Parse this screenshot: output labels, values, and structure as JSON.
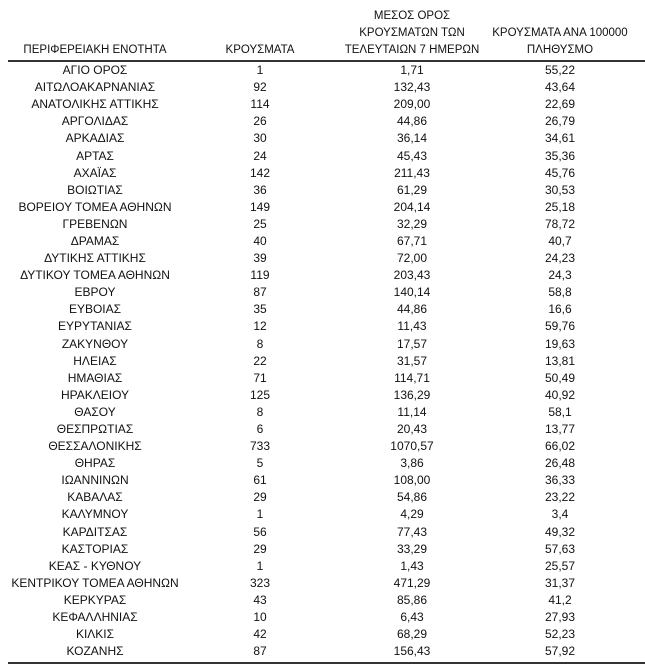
{
  "headers": {
    "region": "ΠΕΡΙΦΕΡΕΙΑΚΗ ΕΝΟΤΗΤΑ",
    "cases": "ΚΡΟΥΣΜΑΤΑ",
    "avg_line1": "ΜΕΣΟΣ ΟΡΟΣ",
    "avg_line2": "ΚΡΟΥΣΜΑΤΩΝ ΤΩΝ",
    "avg_line3": "ΤΕΛΕΥΤΑΙΩΝ 7 ΗΜΕΡΩΝ",
    "per100k_line1": "ΚΡΟΥΣΜΑΤΑ ΑΝΑ 100000",
    "per100k_line2": "ΠΛΗΘΥΣΜΟ"
  },
  "rows": [
    [
      "ΑΓΙΟ ΟΡΟΣ",
      "1",
      "1,71",
      "55,22"
    ],
    [
      "ΑΙΤΩΛΟΑΚΑΡΝΑΝΙΑΣ",
      "92",
      "132,43",
      "43,64"
    ],
    [
      "ΑΝΑΤΟΛΙΚΗΣ ΑΤΤΙΚΗΣ",
      "114",
      "209,00",
      "22,69"
    ],
    [
      "ΑΡΓΟΛΙΔΑΣ",
      "26",
      "44,86",
      "26,79"
    ],
    [
      "ΑΡΚΑΔΙΑΣ",
      "30",
      "36,14",
      "34,61"
    ],
    [
      "ΑΡΤΑΣ",
      "24",
      "45,43",
      "35,36"
    ],
    [
      "ΑΧΑΪΑΣ",
      "142",
      "211,43",
      "45,76"
    ],
    [
      "ΒΟΙΩΤΙΑΣ",
      "36",
      "61,29",
      "30,53"
    ],
    [
      "ΒΟΡΕΙΟΥ ΤΟΜΕΑ ΑΘΗΝΩΝ",
      "149",
      "204,14",
      "25,18"
    ],
    [
      "ΓΡΕΒΕΝΩΝ",
      "25",
      "32,29",
      "78,72"
    ],
    [
      "ΔΡΑΜΑΣ",
      "40",
      "67,71",
      "40,7"
    ],
    [
      "ΔΥΤΙΚΗΣ ΑΤΤΙΚΗΣ",
      "39",
      "72,00",
      "24,23"
    ],
    [
      "ΔΥΤΙΚΟΥ ΤΟΜΕΑ ΑΘΗΝΩΝ",
      "119",
      "203,43",
      "24,3"
    ],
    [
      "ΕΒΡΟΥ",
      "87",
      "140,14",
      "58,8"
    ],
    [
      "ΕΥΒΟΙΑΣ",
      "35",
      "44,86",
      "16,6"
    ],
    [
      "ΕΥΡΥΤΑΝΙΑΣ",
      "12",
      "11,43",
      "59,76"
    ],
    [
      "ΖΑΚΥΝΘΟΥ",
      "8",
      "17,57",
      "19,63"
    ],
    [
      "ΗΛΕΙΑΣ",
      "22",
      "31,57",
      "13,81"
    ],
    [
      "ΗΜΑΘΙΑΣ",
      "71",
      "114,71",
      "50,49"
    ],
    [
      "ΗΡΑΚΛΕΙΟΥ",
      "125",
      "136,29",
      "40,92"
    ],
    [
      "ΘΑΣΟΥ",
      "8",
      "11,14",
      "58,1"
    ],
    [
      "ΘΕΣΠΡΩΤΙΑΣ",
      "6",
      "20,43",
      "13,77"
    ],
    [
      "ΘΕΣΣΑΛΟΝΙΚΗΣ",
      "733",
      "1070,57",
      "66,02"
    ],
    [
      "ΘΗΡΑΣ",
      "5",
      "3,86",
      "26,48"
    ],
    [
      "ΙΩΑΝΝΙΝΩΝ",
      "61",
      "108,00",
      "36,33"
    ],
    [
      "ΚΑΒΑΛΑΣ",
      "29",
      "54,86",
      "23,22"
    ],
    [
      "ΚΑΛΥΜΝΟΥ",
      "1",
      "4,29",
      "3,4"
    ],
    [
      "ΚΑΡΔΙΤΣΑΣ",
      "56",
      "77,43",
      "49,32"
    ],
    [
      "ΚΑΣΤΟΡΙΑΣ",
      "29",
      "33,29",
      "57,63"
    ],
    [
      "ΚΕΑΣ - ΚΥΘΝΟΥ",
      "1",
      "1,43",
      "25,57"
    ],
    [
      "ΚΕΝΤΡΙΚΟΥ ΤΟΜΕΑ ΑΘΗΝΩΝ",
      "323",
      "471,29",
      "31,37"
    ],
    [
      "ΚΕΡΚΥΡΑΣ",
      "43",
      "85,86",
      "41,2"
    ],
    [
      "ΚΕΦΑΛΛΗΝΙΑΣ",
      "10",
      "6,43",
      "27,93"
    ],
    [
      "ΚΙΛΚΙΣ",
      "42",
      "68,29",
      "52,23"
    ],
    [
      "ΚΟΖΑΝΗΣ",
      "87",
      "156,43",
      "57,92"
    ]
  ]
}
